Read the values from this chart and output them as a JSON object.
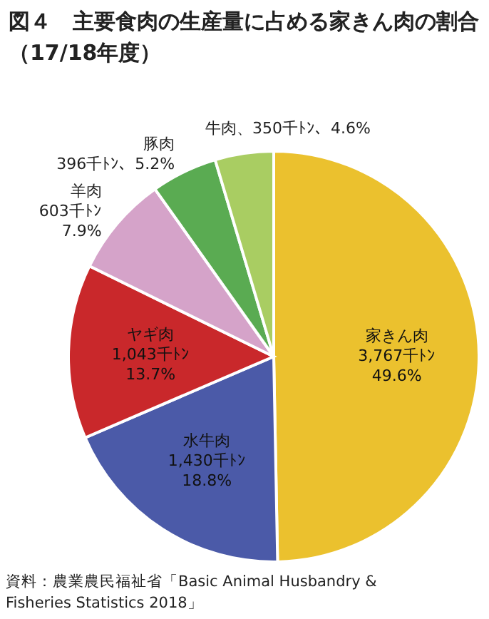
{
  "chart_data": {
    "type": "pie",
    "title": "図４　主要食肉の生産量に占める家きん肉の割合（17/18年度）",
    "categories": [
      "家きん肉",
      "水牛肉",
      "ヤギ肉",
      "羊肉",
      "豚肉",
      "牛肉"
    ],
    "values": [
      49.6,
      18.8,
      13.7,
      7.9,
      5.2,
      4.6
    ],
    "colors": [
      "#ebc12e",
      "#4b5aa8",
      "#c9282b",
      "#d5a3c9",
      "#5aab52",
      "#a9cd62"
    ],
    "value_labels": [
      "\n3,767千ﾄﾝ\n49.6%",
      "\n1,430千ﾄﾝ\n18.8%",
      "\n1,043千ﾄﾝ\n13.7%",
      "\n603千ﾄﾝ\n7.9%",
      "\n396千ﾄﾝ、5.2%",
      "、350千ﾄﾝ、4.6%"
    ],
    "legend": false,
    "annotations": [
      "資料：農業農民福祉省「Basic Animal Husbandry & Fisheries Statistics 2018」"
    ]
  }
}
